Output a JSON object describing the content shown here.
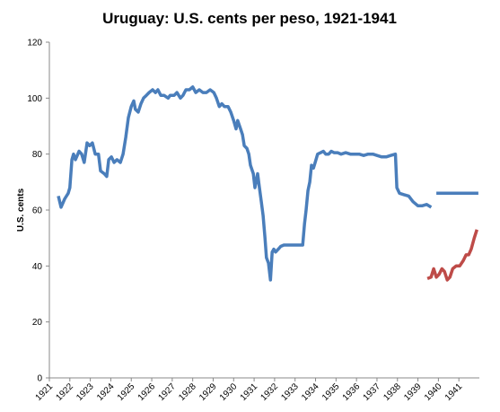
{
  "chart_data": {
    "type": "line",
    "title": "Uruguay: U.S. cents per peso, 1921-1941",
    "y_label": "U.S. cents",
    "xlim": [
      1921,
      1942
    ],
    "xticks": [
      1921,
      1922,
      1923,
      1924,
      1925,
      1926,
      1927,
      1928,
      1929,
      1930,
      1931,
      1932,
      1933,
      1934,
      1935,
      1936,
      1937,
      1938,
      1939,
      1940,
      1941
    ],
    "ylim": [
      0,
      120
    ],
    "yticks": [
      0,
      20,
      40,
      60,
      80,
      100,
      120
    ],
    "grid": false,
    "series": [
      {
        "color": "#4a7ebb",
        "x": [
          1921.44,
          1921.57,
          1921.75,
          1921.92,
          1922.0,
          1922.1,
          1922.18,
          1922.27,
          1922.45,
          1922.58,
          1922.7,
          1922.84,
          1922.97,
          1923.1,
          1923.24,
          1923.4,
          1923.5,
          1923.68,
          1923.8,
          1923.9,
          1924.03,
          1924.16,
          1924.3,
          1924.47,
          1924.6,
          1924.73,
          1924.86,
          1925.0,
          1925.12,
          1925.2,
          1925.34,
          1925.47,
          1925.6,
          1925.74,
          1925.87,
          1926.04,
          1926.18,
          1926.3,
          1926.44,
          1926.6,
          1926.8,
          1926.9,
          1927.1,
          1927.23,
          1927.4,
          1927.53,
          1927.67,
          1927.84,
          1928.0,
          1928.15,
          1928.32,
          1928.5,
          1928.67,
          1928.85,
          1929.03,
          1929.16,
          1929.3,
          1929.42,
          1929.55,
          1929.73,
          1929.86,
          1930.0,
          1930.12,
          1930.2,
          1930.34,
          1930.43,
          1930.52,
          1930.65,
          1930.74,
          1930.82,
          1930.96,
          1931.04,
          1931.17,
          1931.26,
          1931.35,
          1931.44,
          1931.53,
          1931.6,
          1931.7,
          1931.8,
          1931.88,
          1931.96,
          1932.05,
          1932.18,
          1932.3,
          1932.45,
          1932.62,
          1932.84,
          1933.06,
          1933.24,
          1933.37,
          1933.46,
          1933.54,
          1933.63,
          1933.72,
          1933.8,
          1933.9,
          1933.98,
          1934.1,
          1934.25,
          1934.38,
          1934.5,
          1934.64,
          1934.77,
          1934.9,
          1935.08,
          1935.25,
          1935.47,
          1935.7,
          1935.9,
          1936.13,
          1936.35,
          1936.57,
          1936.8,
          1937.0,
          1937.23,
          1937.45,
          1937.67,
          1937.9,
          1937.97,
          1938.1,
          1938.32,
          1938.55,
          1938.76,
          1939.0,
          1939.2,
          1939.42,
          1939.65,
          1939.8,
          1939.9,
          1940.5,
          1941.0,
          1941.5,
          1941.95
        ],
        "values": [
          65,
          61,
          64,
          66,
          68,
          78,
          80,
          78,
          81,
          80,
          77,
          84,
          83,
          84,
          80,
          80,
          74,
          73,
          72,
          78,
          79,
          77,
          78,
          77,
          80,
          86,
          93,
          97,
          99,
          96,
          95,
          98,
          100,
          101,
          102,
          103,
          102,
          103,
          101,
          101,
          100,
          101,
          101,
          102,
          100,
          101,
          103,
          103,
          104,
          102,
          103,
          102,
          102,
          103,
          102,
          100,
          97,
          98,
          97,
          97,
          95,
          92,
          89,
          92,
          89,
          87,
          83,
          82,
          80,
          76,
          73,
          68,
          73,
          68,
          63,
          58,
          50,
          43,
          41,
          35,
          45,
          46,
          45,
          46,
          47,
          47.5,
          47.5,
          47.5,
          47.5,
          47.5,
          47.5,
          55,
          60,
          67,
          70,
          76,
          75,
          77,
          80,
          80.5,
          81,
          80,
          80,
          81,
          80.5,
          80.5,
          80,
          80.5,
          80,
          80,
          80,
          79.5,
          80,
          80,
          79.5,
          79,
          79,
          79.5,
          80,
          68,
          66,
          65.5,
          65,
          63,
          61.5,
          61.5,
          62,
          61,
          null,
          66,
          66,
          66,
          66,
          66
        ]
      },
      {
        "color": "#be4b48",
        "x": [
          1939.46,
          1939.64,
          1939.77,
          1939.9,
          1940.03,
          1940.17,
          1940.3,
          1940.43,
          1940.56,
          1940.7,
          1940.87,
          1941.04,
          1941.22,
          1941.35,
          1941.48,
          1941.6,
          1941.75,
          1941.88
        ],
        "values": [
          35.5,
          36,
          39,
          36,
          37,
          39,
          38,
          35,
          36,
          39,
          40,
          40,
          42,
          44,
          44,
          46,
          50,
          53
        ]
      }
    ]
  }
}
